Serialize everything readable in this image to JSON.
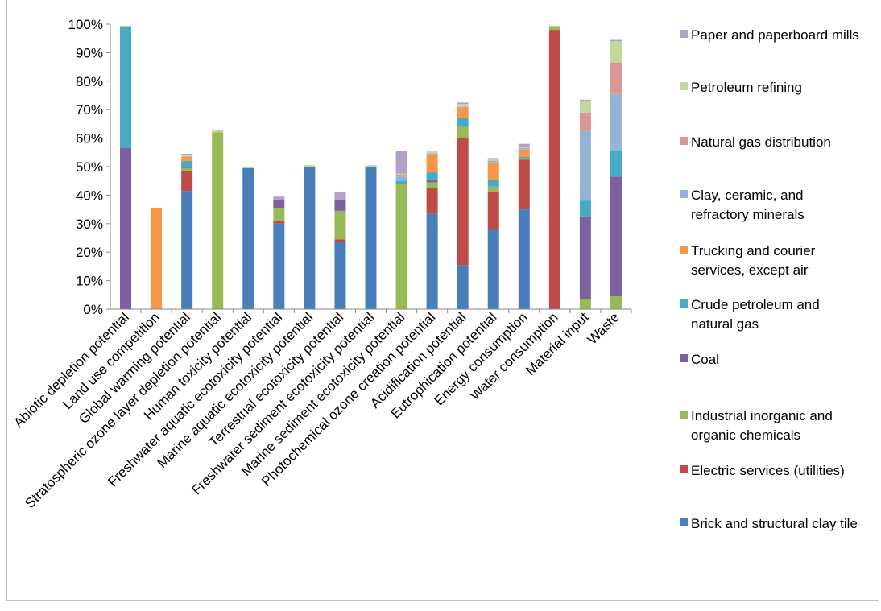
{
  "chart_data": {
    "type": "bar",
    "stacked": true,
    "title": "",
    "xlabel": "",
    "ylabel": "",
    "ylim": [
      0,
      100
    ],
    "y_ticks": [
      "0%",
      "10%",
      "20%",
      "30%",
      "40%",
      "50%",
      "60%",
      "70%",
      "80%",
      "90%",
      "100%"
    ],
    "grid": false,
    "legend_position": "right",
    "categories": [
      "Abiotic depletion potential",
      "Land use competition",
      "Global warming potential",
      "Stratospheric ozone layer depletion potential",
      "Human toxicity potential",
      "Freshwater aquatic ecotoxicity potential",
      "Marine aquatic ecotoxicity potential",
      "Terrestrial ecotoxicity potential",
      "Freshwater sediment ecotoxicity potential",
      "Marine sediment ecotoxicity potential",
      "Photochemical ozone creation potential",
      "Acidification potential",
      "Eutrophication potential",
      "Energy consumption",
      "Water consumption",
      "Material input",
      "Waste"
    ],
    "series": [
      {
        "name": "Brick and structural clay tile",
        "color": "#4a7ebb",
        "values": [
          0,
          0,
          41.5,
          0,
          49.5,
          30,
          50,
          23.5,
          50,
          0,
          33.5,
          15.5,
          28,
          35,
          0,
          0,
          0
        ]
      },
      {
        "name": "Electric services (utilities)",
        "color": "#be4b48",
        "values": [
          0,
          0,
          7,
          0,
          0,
          1,
          0,
          1,
          0,
          0,
          9,
          44.5,
          13,
          17.5,
          98,
          0,
          0
        ]
      },
      {
        "name": "Industrial inorganic and organic chemicals",
        "color": "#98b954",
        "values": [
          0,
          0,
          1,
          62,
          0,
          4.5,
          0,
          10,
          0,
          44,
          2,
          4,
          2,
          0.5,
          1,
          3.5,
          4.5
        ]
      },
      {
        "name": "Coal",
        "color": "#7d60a0",
        "values": [
          56.5,
          0,
          0.5,
          0,
          0,
          3,
          0,
          4,
          0,
          0,
          1,
          0,
          0,
          0,
          0,
          29,
          42
        ]
      },
      {
        "name": "Crude petroleum and natural gas",
        "color": "#46aac5",
        "values": [
          42.5,
          0,
          2,
          0,
          0,
          0,
          0,
          0,
          0,
          1,
          2.5,
          3,
          2.5,
          0.5,
          0,
          5.5,
          9
        ]
      },
      {
        "name": "Trucking and courier services, except air",
        "color": "#f79646",
        "values": [
          0,
          35.5,
          1.5,
          0,
          0,
          0,
          0,
          0,
          0,
          0,
          6,
          3.5,
          6,
          2.5,
          0,
          0,
          0
        ]
      },
      {
        "name": "Clay, ceramic, and refractory minerals",
        "color": "#95b3d7",
        "values": [
          0,
          0,
          0,
          0,
          0,
          0,
          0,
          0,
          0,
          1.5,
          0.5,
          0,
          0.5,
          0.5,
          0,
          24.5,
          20
        ]
      },
      {
        "name": "Natural gas distribution",
        "color": "#d99694",
        "values": [
          0,
          0,
          0,
          0,
          0,
          0,
          0,
          0,
          0,
          0.5,
          0,
          0.5,
          0,
          0,
          0,
          6.5,
          11
        ]
      },
      {
        "name": "Petroleum refining",
        "color": "#c3d69b",
        "values": [
          0.5,
          0,
          0.5,
          1,
          0.5,
          0,
          0.5,
          0,
          0.5,
          0.5,
          1,
          1,
          0.5,
          0.5,
          0.5,
          4,
          7.5
        ]
      },
      {
        "name": "Paper and paperboard mills",
        "color": "#b3a2c7",
        "values": [
          0,
          0,
          0.5,
          0,
          0,
          1,
          0,
          2.5,
          0,
          8,
          0,
          0.5,
          0.5,
          1,
          0,
          0.5,
          0.5
        ]
      }
    ]
  }
}
